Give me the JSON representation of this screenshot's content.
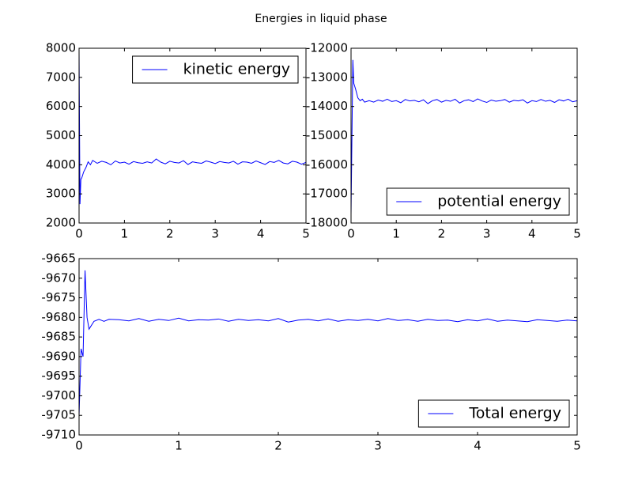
{
  "title": "Energies in liquid phase",
  "chart_data": [
    {
      "type": "line",
      "x": [
        0,
        0.02,
        0.04,
        0.06,
        0.08,
        0.1,
        0.15,
        0.2,
        0.25,
        0.3,
        0.4,
        0.5,
        0.6,
        0.7,
        0.8,
        0.9,
        1.0,
        1.1,
        1.2,
        1.3,
        1.4,
        1.5,
        1.6,
        1.7,
        1.8,
        1.9,
        2.0,
        2.1,
        2.2,
        2.3,
        2.4,
        2.5,
        2.6,
        2.7,
        2.8,
        2.9,
        3.0,
        3.1,
        3.2,
        3.3,
        3.4,
        3.5,
        3.6,
        3.7,
        3.8,
        3.9,
        4.0,
        4.1,
        4.2,
        4.3,
        4.4,
        4.5,
        4.6,
        4.7,
        4.8,
        4.9,
        5.0
      ],
      "series": [
        {
          "name": "kinetic energy",
          "color": "#0000ff",
          "values": [
            7900,
            2650,
            3500,
            3550,
            3650,
            3750,
            3900,
            4100,
            4000,
            4150,
            4050,
            4120,
            4080,
            4000,
            4130,
            4060,
            4090,
            4020,
            4110,
            4070,
            4050,
            4100,
            4060,
            4200,
            4090,
            4030,
            4120,
            4080,
            4060,
            4140,
            4010,
            4100,
            4070,
            4050,
            4130,
            4090,
            4040,
            4110,
            4080,
            4060,
            4120,
            4020,
            4100,
            4090,
            4050,
            4130,
            4070,
            4010,
            4110,
            4080,
            4150,
            4060,
            4030,
            4120,
            4090,
            4020,
            4080
          ]
        }
      ],
      "xlim": [
        0,
        5
      ],
      "ylim": [
        2000,
        8000
      ],
      "xticks": [
        0,
        1,
        2,
        3,
        4,
        5
      ],
      "yticks": [
        2000,
        3000,
        4000,
        5000,
        6000,
        7000,
        8000
      ],
      "legend": "upper right"
    },
    {
      "type": "line",
      "x": [
        0,
        0.02,
        0.04,
        0.06,
        0.08,
        0.1,
        0.15,
        0.2,
        0.25,
        0.3,
        0.4,
        0.5,
        0.6,
        0.7,
        0.8,
        0.9,
        1.0,
        1.1,
        1.2,
        1.3,
        1.4,
        1.5,
        1.6,
        1.7,
        1.8,
        1.9,
        2.0,
        2.1,
        2.2,
        2.3,
        2.4,
        2.5,
        2.6,
        2.7,
        2.8,
        2.9,
        3.0,
        3.1,
        3.2,
        3.3,
        3.4,
        3.5,
        3.6,
        3.7,
        3.8,
        3.9,
        4.0,
        4.1,
        4.2,
        4.3,
        4.4,
        4.5,
        4.6,
        4.7,
        4.8,
        4.9,
        5.0
      ],
      "series": [
        {
          "name": "potential energy",
          "color": "#0000ff",
          "values": [
            -17700,
            -15000,
            -12400,
            -13200,
            -13300,
            -13400,
            -13700,
            -13800,
            -13750,
            -13850,
            -13800,
            -13850,
            -13780,
            -13820,
            -13750,
            -13830,
            -13800,
            -13870,
            -13760,
            -13810,
            -13790,
            -13840,
            -13770,
            -13900,
            -13800,
            -13760,
            -13850,
            -13790,
            -13820,
            -13750,
            -13880,
            -13800,
            -13770,
            -13830,
            -13740,
            -13810,
            -13860,
            -13780,
            -13820,
            -13800,
            -13760,
            -13850,
            -13790,
            -13810,
            -13770,
            -13880,
            -13800,
            -13830,
            -13760,
            -13820,
            -13790,
            -13860,
            -13770,
            -13810,
            -13750,
            -13840,
            -13800
          ]
        }
      ],
      "xlim": [
        0,
        5
      ],
      "ylim": [
        -18000,
        -12000
      ],
      "xticks": [
        0,
        1,
        2,
        3,
        4,
        5
      ],
      "yticks": [
        -18000,
        -17000,
        -16000,
        -15000,
        -14000,
        -13000,
        -12000
      ],
      "legend": "lower right"
    },
    {
      "type": "line",
      "x": [
        0,
        0.02,
        0.04,
        0.06,
        0.08,
        0.1,
        0.15,
        0.2,
        0.25,
        0.3,
        0.4,
        0.5,
        0.6,
        0.7,
        0.8,
        0.9,
        1.0,
        1.1,
        1.2,
        1.3,
        1.4,
        1.5,
        1.6,
        1.7,
        1.8,
        1.9,
        2.0,
        2.1,
        2.2,
        2.3,
        2.4,
        2.5,
        2.6,
        2.7,
        2.8,
        2.9,
        3.0,
        3.1,
        3.2,
        3.3,
        3.4,
        3.5,
        3.6,
        3.7,
        3.8,
        3.9,
        4.0,
        4.1,
        4.2,
        4.3,
        4.4,
        4.5,
        4.6,
        4.7,
        4.8,
        4.9,
        5.0
      ],
      "series": [
        {
          "name": "Total energy",
          "color": "#0000ff",
          "values": [
            -9705,
            -9688,
            -9690,
            -9668,
            -9680,
            -9683,
            -9681,
            -9680.5,
            -9681,
            -9680.5,
            -9680.6,
            -9680.9,
            -9680.3,
            -9681.0,
            -9680.5,
            -9680.8,
            -9680.2,
            -9680.9,
            -9680.6,
            -9680.7,
            -9680.4,
            -9681.0,
            -9680.5,
            -9680.8,
            -9680.6,
            -9680.9,
            -9680.3,
            -9681.2,
            -9680.7,
            -9680.5,
            -9680.9,
            -9680.4,
            -9681.0,
            -9680.6,
            -9680.8,
            -9680.5,
            -9680.9,
            -9680.3,
            -9680.8,
            -9680.6,
            -9681.0,
            -9680.5,
            -9680.8,
            -9680.7,
            -9681.1,
            -9680.6,
            -9680.9,
            -9680.4,
            -9681.0,
            -9680.7,
            -9680.9,
            -9681.1,
            -9680.6,
            -9680.8,
            -9681.0,
            -9680.7,
            -9680.9
          ]
        }
      ],
      "xlim": [
        0,
        5
      ],
      "ylim": [
        -9710,
        -9665
      ],
      "xticks": [
        0,
        1,
        2,
        3,
        4,
        5
      ],
      "yticks": [
        -9710,
        -9705,
        -9700,
        -9695,
        -9690,
        -9685,
        -9680,
        -9675,
        -9670,
        -9665
      ],
      "legend": "lower right"
    }
  ]
}
